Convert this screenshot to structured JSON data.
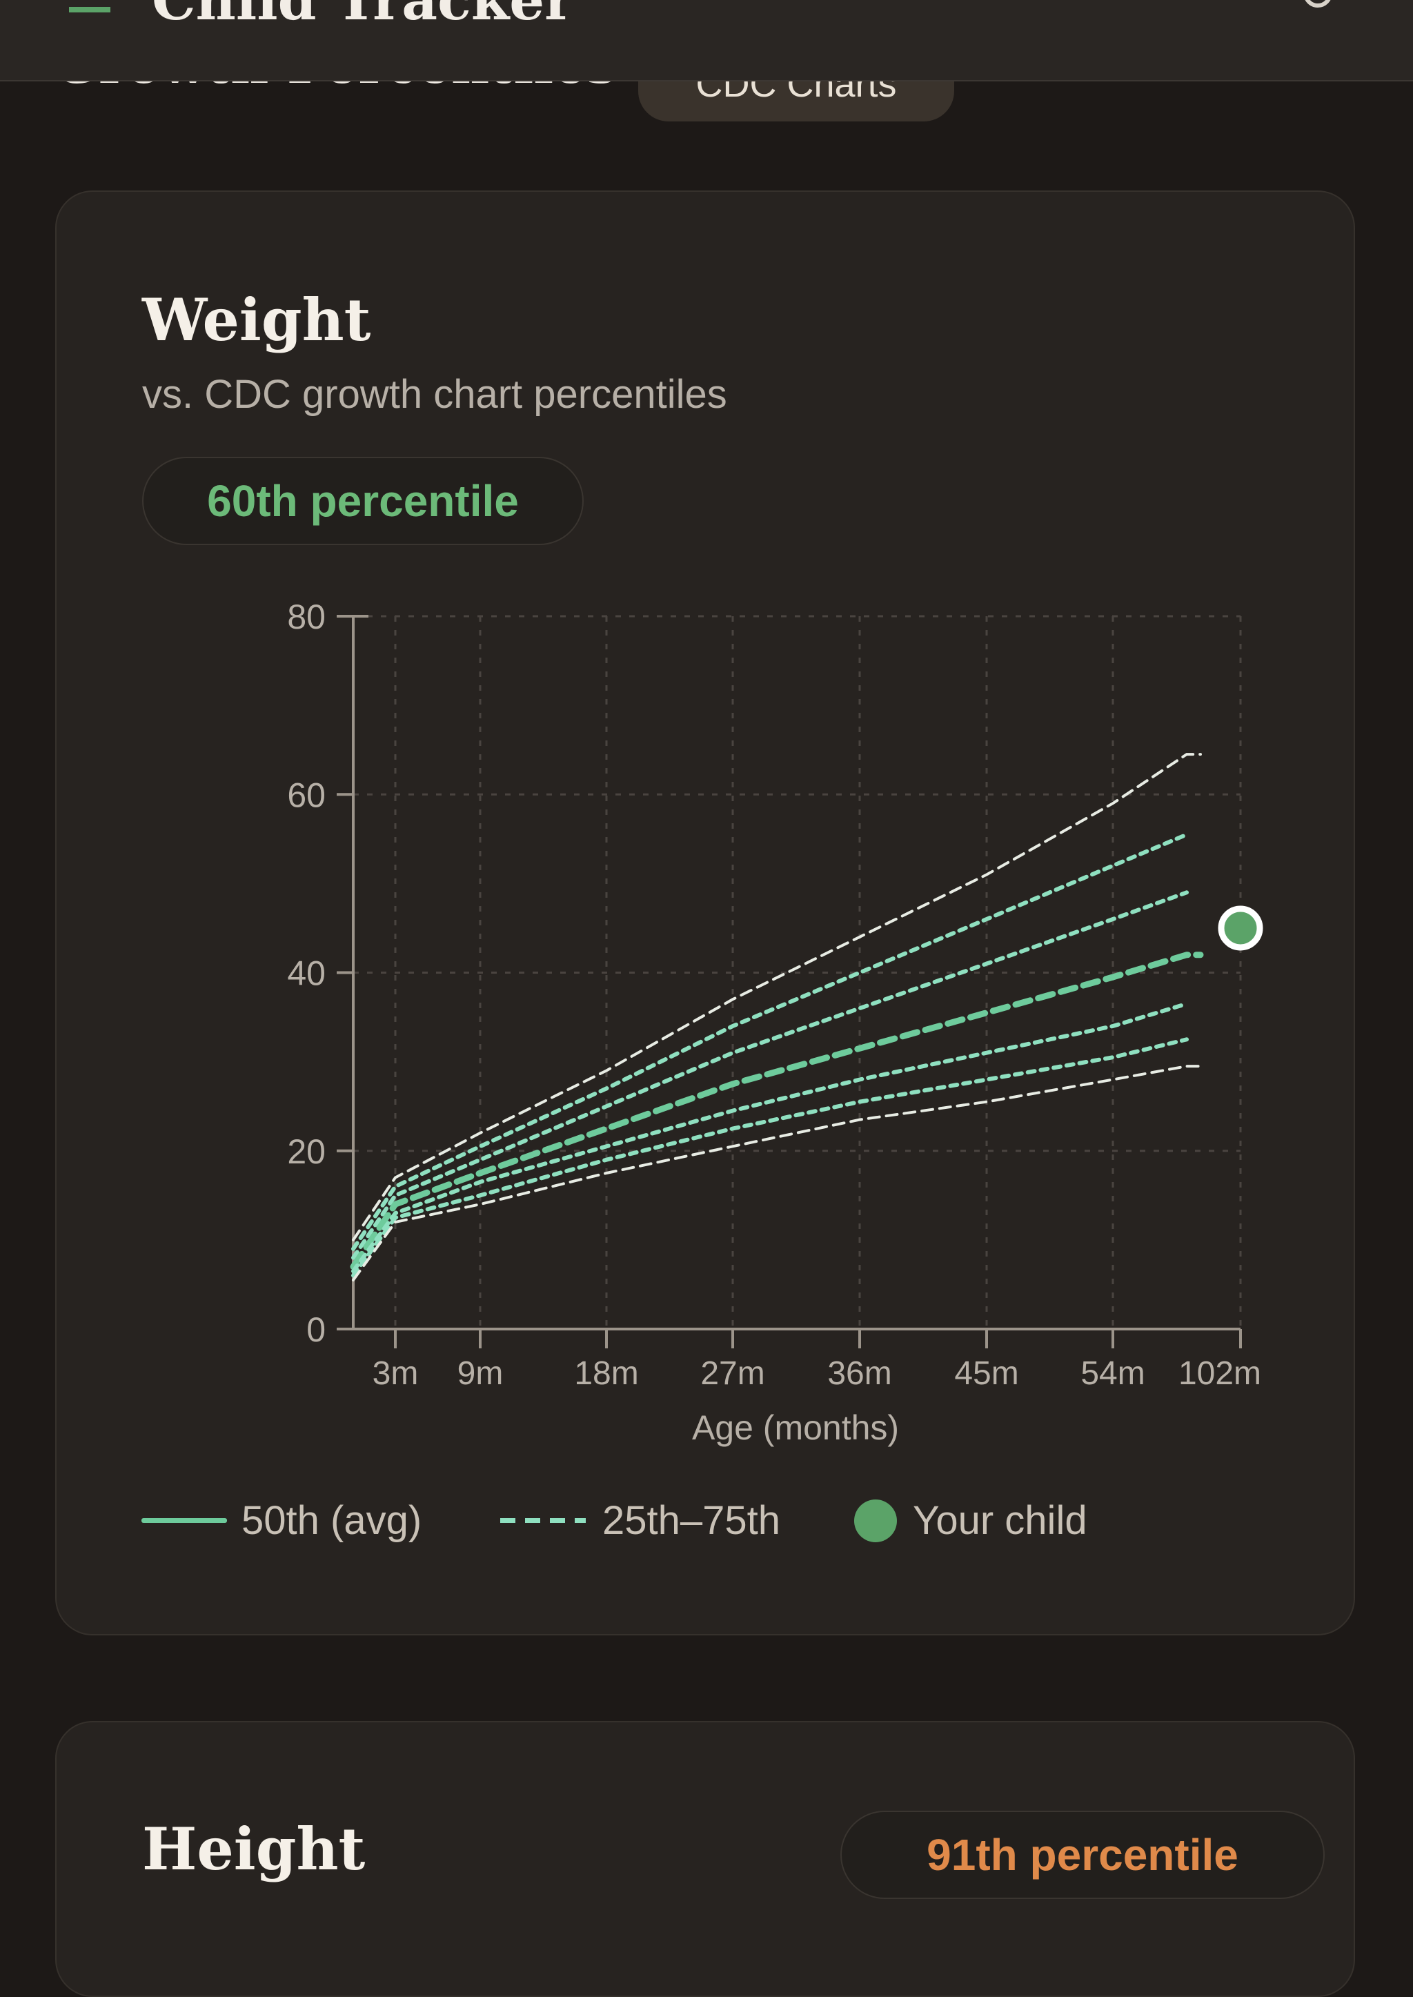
{
  "app": {
    "title": "Child Tracker",
    "logo_icon": "app-logo-icon",
    "settings_icon": "gear-icon"
  },
  "section": {
    "title": "Growth Percentiles",
    "chip_label": "CDC Charts"
  },
  "weight_card": {
    "title": "Weight",
    "subtitle": "vs. CDC growth chart percentiles",
    "percentile_label": "60th percentile"
  },
  "height_card": {
    "title": "Height",
    "percentile_label": "91th percentile"
  },
  "legend": {
    "avg_label": "50th (avg)",
    "range_label": "25th–75th",
    "child_label": "Your child"
  },
  "colors": {
    "avg_line": "#6ecb9c",
    "percentile_line": "#8fe0c0",
    "outer_line": "#e8ece4",
    "child_dot": "#5ba368",
    "weight_badge": "#6cba79",
    "height_badge": "#e08a4a"
  },
  "chart_data": {
    "type": "line",
    "xlabel": "Age (months)",
    "ylabel": "",
    "x_ticks": [
      "3m",
      "9m",
      "18m",
      "27m",
      "36m",
      "45m",
      "54m",
      "102m"
    ],
    "ylim": [
      0,
      80
    ],
    "y_ticks": [
      0,
      20,
      40,
      60,
      80
    ],
    "grid": true,
    "legend_position": "bottom",
    "x_points": [
      "0m",
      "3m",
      "9m",
      "18m",
      "27m",
      "36m",
      "45m",
      "54m",
      "57m",
      "60m"
    ],
    "series": [
      {
        "style": "outer",
        "values": [
          10,
          17,
          22,
          29,
          37,
          44,
          51,
          59,
          64.5,
          64.5
        ]
      },
      {
        "style": "percentile",
        "values": [
          9,
          16,
          20.5,
          27,
          34,
          40,
          46,
          52,
          55.5,
          null
        ]
      },
      {
        "style": "percentile",
        "values": [
          8,
          15,
          19,
          25,
          31,
          36,
          41,
          46,
          49,
          null
        ]
      },
      {
        "name": "50th (avg)",
        "style": "avg",
        "values": [
          7,
          14,
          17.5,
          22.5,
          27.5,
          31.5,
          35.5,
          39.5,
          42,
          42
        ]
      },
      {
        "style": "percentile",
        "values": [
          6.5,
          13,
          16.5,
          20.5,
          24.5,
          28,
          31,
          34,
          36.5,
          null
        ]
      },
      {
        "style": "percentile",
        "values": [
          6,
          12.5,
          15,
          19,
          22.5,
          25.5,
          28,
          30.5,
          32.5,
          null
        ]
      },
      {
        "style": "outer",
        "values": [
          5.5,
          12,
          14,
          17.5,
          20.5,
          23.5,
          25.5,
          28,
          29.5,
          29.5
        ]
      }
    ],
    "your_child": {
      "x": "102m",
      "y": 45
    }
  }
}
